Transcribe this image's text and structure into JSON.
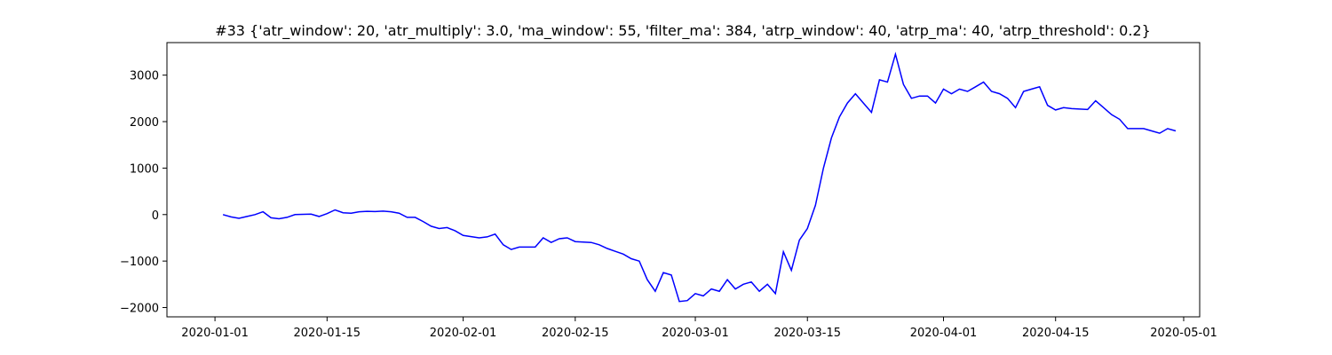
{
  "chart_data": {
    "type": "line",
    "title": "#33 {'atr_window': 20, 'atr_multiply': 3.0, 'ma_window': 55, 'filter_ma': 384, 'atrp_window': 40, 'atrp_ma': 40, 'atrp_threshold': 0.2}",
    "xlabel": "",
    "ylabel": "",
    "grid": false,
    "legend": "none",
    "xlim": [
      "2019-12-26",
      "2020-05-03"
    ],
    "ylim": [
      -2200,
      3700
    ],
    "x_ticks": [
      "2020-01-01",
      "2020-01-15",
      "2020-02-01",
      "2020-02-15",
      "2020-03-01",
      "2020-03-15",
      "2020-04-01",
      "2020-04-15",
      "2020-05-01"
    ],
    "y_ticks": [
      -2000,
      -1000,
      0,
      1000,
      2000,
      3000
    ],
    "series": [
      {
        "color": "#0000ff",
        "x": [
          "2020-01-02",
          "2020-01-03",
          "2020-01-04",
          "2020-01-05",
          "2020-01-06",
          "2020-01-07",
          "2020-01-08",
          "2020-01-09",
          "2020-01-10",
          "2020-01-11",
          "2020-01-12",
          "2020-01-13",
          "2020-01-14",
          "2020-01-15",
          "2020-01-16",
          "2020-01-17",
          "2020-01-18",
          "2020-01-19",
          "2020-01-20",
          "2020-01-21",
          "2020-01-22",
          "2020-01-23",
          "2020-01-24",
          "2020-01-25",
          "2020-01-26",
          "2020-01-27",
          "2020-01-28",
          "2020-01-29",
          "2020-01-30",
          "2020-01-31",
          "2020-02-01",
          "2020-02-03",
          "2020-02-04",
          "2020-02-05",
          "2020-02-06",
          "2020-02-07",
          "2020-02-08",
          "2020-02-10",
          "2020-02-11",
          "2020-02-12",
          "2020-02-13",
          "2020-02-14",
          "2020-02-15",
          "2020-02-17",
          "2020-02-18",
          "2020-02-19",
          "2020-02-20",
          "2020-02-21",
          "2020-02-22",
          "2020-02-23",
          "2020-02-24",
          "2020-02-25",
          "2020-02-26",
          "2020-02-27",
          "2020-02-28",
          "2020-02-29",
          "2020-03-01",
          "2020-03-02",
          "2020-03-03",
          "2020-03-04",
          "2020-03-05",
          "2020-03-06",
          "2020-03-07",
          "2020-03-08",
          "2020-03-09",
          "2020-03-10",
          "2020-03-11",
          "2020-03-12",
          "2020-03-13",
          "2020-03-14",
          "2020-03-15",
          "2020-03-16",
          "2020-03-17",
          "2020-03-18",
          "2020-03-19",
          "2020-03-20",
          "2020-03-21",
          "2020-03-22",
          "2020-03-23",
          "2020-03-24",
          "2020-03-25",
          "2020-03-26",
          "2020-03-27",
          "2020-03-28",
          "2020-03-29",
          "2020-03-30",
          "2020-03-31",
          "2020-04-01",
          "2020-04-02",
          "2020-04-03",
          "2020-04-04",
          "2020-04-05",
          "2020-04-06",
          "2020-04-07",
          "2020-04-08",
          "2020-04-09",
          "2020-04-10",
          "2020-04-11",
          "2020-04-12",
          "2020-04-13",
          "2020-04-14",
          "2020-04-15",
          "2020-04-16",
          "2020-04-17",
          "2020-04-18",
          "2020-04-19",
          "2020-04-20",
          "2020-04-21",
          "2020-04-22",
          "2020-04-23",
          "2020-04-24",
          "2020-04-25",
          "2020-04-26",
          "2020-04-27",
          "2020-04-28",
          "2020-04-29",
          "2020-04-30"
        ],
        "values": [
          0,
          -50,
          -80,
          -40,
          0,
          60,
          -70,
          -90,
          -60,
          0,
          5,
          10,
          -40,
          20,
          100,
          40,
          30,
          60,
          70,
          65,
          75,
          60,
          30,
          -60,
          -60,
          -150,
          -250,
          -300,
          -280,
          -350,
          -450,
          -500,
          -480,
          -420,
          -650,
          -750,
          -700,
          -700,
          -500,
          -600,
          -520,
          -500,
          -580,
          -600,
          -650,
          -730,
          -790,
          -850,
          -950,
          -1000,
          -1400,
          -1650,
          -1250,
          -1300,
          -1870,
          -1850,
          -1700,
          -1750,
          -1600,
          -1650,
          -1400,
          -1600,
          -1500,
          -1450,
          -1650,
          -1500,
          -1700,
          -800,
          -1200,
          -550,
          -300,
          200,
          1000,
          1650,
          2100,
          2400,
          2600,
          2400,
          2200,
          2900,
          2850,
          3450,
          2800,
          2500,
          2550,
          2550,
          2400,
          2700,
          2600,
          2700,
          2650,
          2750,
          2850,
          2650,
          2600,
          2500,
          2300,
          2650,
          2700,
          2750,
          2350,
          2250,
          2300,
          2280,
          2270,
          2260,
          2450,
          2300,
          2150,
          2050,
          1850,
          1850,
          1850,
          1800,
          1750,
          1850,
          1800
        ]
      }
    ]
  }
}
